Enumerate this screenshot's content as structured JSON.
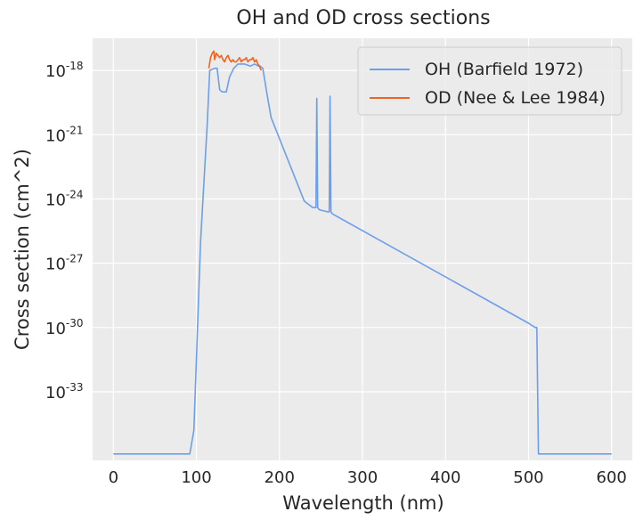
{
  "chart_data": {
    "type": "line",
    "title": "OH and OD cross sections",
    "xlabel": "Wavelength (nm)",
    "ylabel": "Cross section (cm^2)",
    "xlim": [
      -25,
      625
    ],
    "ylim_log10": [
      -36.2,
      -16.5
    ],
    "yscale": "log",
    "grid": true,
    "legend_position": "top-right",
    "x_ticks": [
      0,
      100,
      200,
      300,
      400,
      500,
      600
    ],
    "y_ticks": [
      {
        "base": "10",
        "exp": "-18",
        "log10": -18
      },
      {
        "base": "10",
        "exp": "-21",
        "log10": -21
      },
      {
        "base": "10",
        "exp": "-24",
        "log10": -24
      },
      {
        "base": "10",
        "exp": "-27",
        "log10": -27
      },
      {
        "base": "10",
        "exp": "-30",
        "log10": -30
      },
      {
        "base": "10",
        "exp": "-33",
        "log10": -33
      }
    ],
    "series": [
      {
        "name": "OH (Barfield 1972)",
        "color": "#6d9eeb",
        "x": [
          0,
          92,
          97,
          105,
          113,
          116,
          122,
          125,
          128,
          131,
          136,
          140,
          145,
          150,
          158,
          165,
          170,
          175,
          177,
          180,
          185,
          190,
          230,
          240,
          244,
          245,
          246,
          248,
          258,
          260,
          261,
          262,
          264,
          500,
          508,
          510,
          512,
          600
        ],
        "log10y": [
          -35.9,
          -35.9,
          -34.8,
          -26.0,
          -20.5,
          -18.0,
          -17.9,
          -17.9,
          -18.9,
          -19.0,
          -19.0,
          -18.3,
          -17.9,
          -17.7,
          -17.7,
          -17.8,
          -17.7,
          -17.8,
          -17.8,
          -17.9,
          -19.1,
          -20.2,
          -24.1,
          -24.4,
          -24.4,
          -19.3,
          -24.4,
          -24.5,
          -24.6,
          -24.6,
          -19.2,
          -24.6,
          -24.7,
          -29.8,
          -30.0,
          -30.0,
          -35.9,
          -35.9
        ]
      },
      {
        "name": "OD (Nee & Lee 1984)",
        "color": "#f2631f",
        "x": [
          115,
          117,
          119,
          121,
          122,
          124,
          126,
          128,
          130,
          132,
          134,
          136,
          138,
          140,
          142,
          144,
          146,
          148,
          150,
          152,
          154,
          156,
          158,
          160,
          162,
          164,
          166,
          168,
          170,
          172,
          174,
          176,
          177,
          178
        ],
        "log10y": [
          -17.9,
          -17.4,
          -17.2,
          -17.1,
          -17.5,
          -17.2,
          -17.3,
          -17.4,
          -17.3,
          -17.5,
          -17.6,
          -17.4,
          -17.3,
          -17.5,
          -17.6,
          -17.5,
          -17.6,
          -17.6,
          -17.5,
          -17.4,
          -17.6,
          -17.5,
          -17.5,
          -17.4,
          -17.6,
          -17.5,
          -17.5,
          -17.4,
          -17.6,
          -17.5,
          -17.7,
          -17.8,
          -17.9,
          -18.0
        ]
      }
    ]
  }
}
